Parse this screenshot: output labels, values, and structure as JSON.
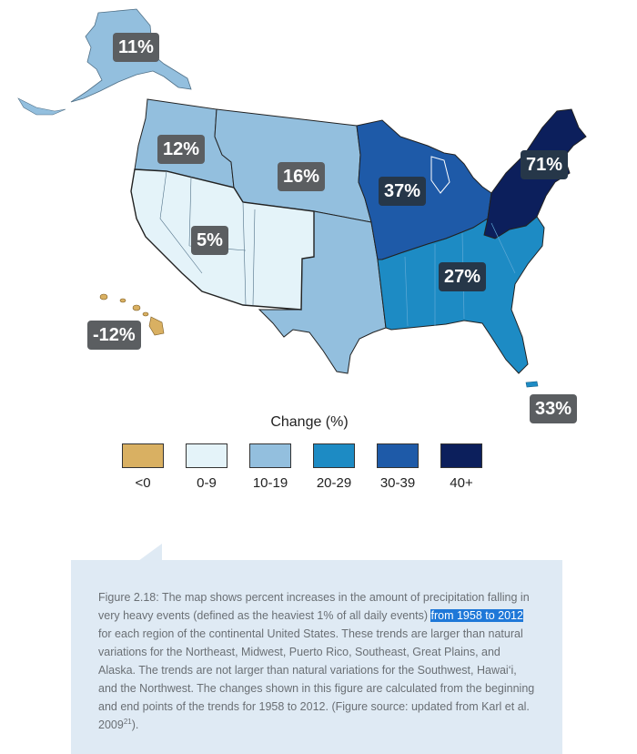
{
  "badges": {
    "alaska": "11%",
    "northwest": "12%",
    "great_plains_north": "16%",
    "southwest": "5%",
    "hawaii": "-12%",
    "midwest": "37%",
    "northeast": "71%",
    "southeast": "27%",
    "puerto_rico": "33%"
  },
  "legend": {
    "title": "Change (%)",
    "items": [
      {
        "label": "<0",
        "color": "#d9b062"
      },
      {
        "label": "0-9",
        "color": "#e4f3f9"
      },
      {
        "label": "10-19",
        "color": "#93bfde"
      },
      {
        "label": "20-29",
        "color": "#1d8bc4"
      },
      {
        "label": "30-39",
        "color": "#1e5aa8"
      },
      {
        "label": "40+",
        "color": "#0c1f5c"
      }
    ]
  },
  "caption": {
    "part1": "Figure 2.18: The map shows percent increases in the amount of precipitation falling in very heavy events (defined as the heaviest 1% of all daily events) ",
    "highlight": "from 1958 to 2012",
    "part2": " for each region of the continental United States. These trends are larger than natural variations for the Northeast, Midwest, Puerto Rico, Southeast, Great Plains, and Alaska. The trends are not larger than natural variations for the Southwest, Hawai‘i, and the Northwest. The changes shown in this figure are calculated from the beginning and end points of the trends for 1958 to 2012. (Figure source: updated from Karl et al. 2009",
    "sup": "21",
    "part3": ")."
  }
}
